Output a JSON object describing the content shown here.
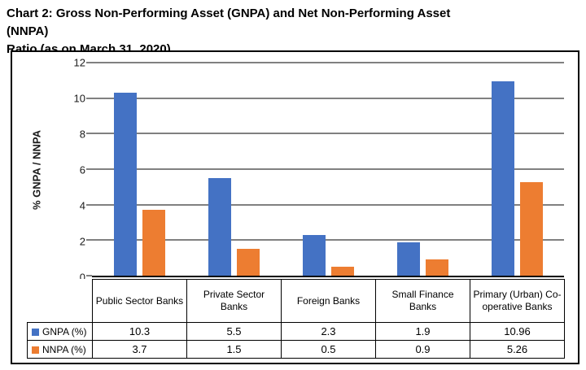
{
  "header": {
    "title_line1": "Chart 2: Gross Non-Performing Asset (GNPA) and Net Non-Performing Asset (NNPA)",
    "title_line2": "Ratio (as on March 31, 2020)"
  },
  "chart_data": {
    "type": "bar",
    "title": "Chart 2: Gross Non-Performing Asset (GNPA) and Net Non-Performing Asset (NNPA) Ratio (as on March 31, 2020)",
    "categories": [
      "Public Sector Banks",
      "Private Sector Banks",
      "Foreign Banks",
      "Small Finance Banks",
      "Primary (Urban) Co-operative Banks"
    ],
    "series": [
      {
        "name": "GNPA (%)",
        "color": "#4472C4",
        "values": [
          10.3,
          5.5,
          2.3,
          1.9,
          10.96
        ]
      },
      {
        "name": "NNPA (%)",
        "color": "#ED7D31",
        "values": [
          3.7,
          1.5,
          0.5,
          0.9,
          5.26
        ]
      }
    ],
    "ylabel": "% GNPA / NNPA",
    "ylim": [
      0,
      12
    ],
    "yticks": [
      0,
      2,
      4,
      6,
      8,
      10,
      12
    ],
    "grid": true,
    "legend_position": "table-left",
    "data_table_shown": true
  },
  "colors": {
    "gnpa_blue": "#4472C4",
    "nnpa_orange": "#ED7D31",
    "axis_and_border": "#000000",
    "background": "#FFFFFF"
  }
}
